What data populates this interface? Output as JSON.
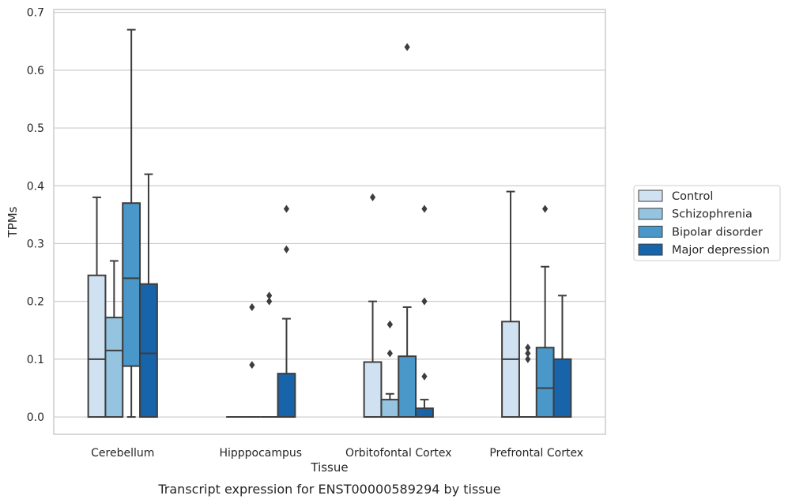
{
  "caption": "Transcript expression for ENST00000589294 by tissue",
  "chart_data": {
    "type": "box",
    "xlabel": "Tissue",
    "ylabel": "TPMs",
    "ylim": [
      -0.03,
      0.705
    ],
    "yticks": [
      "0.0",
      "0.1",
      "0.2",
      "0.3",
      "0.4",
      "0.5",
      "0.6",
      "0.7"
    ],
    "grid": "horizontal",
    "legend_position": "right",
    "categories": [
      "Cerebellum",
      "Hipppocampus",
      "Orbitofontal Cortex",
      "Prefrontal Cortex"
    ],
    "series": [
      {
        "name": "Control",
        "color": "#d0e1f2",
        "boxes": [
          {
            "whislo": 0.0,
            "q1": 0.0,
            "med": 0.1,
            "q3": 0.245,
            "whishi": 0.38,
            "fliers": []
          },
          {
            "whislo": 0.0,
            "q1": 0.0,
            "med": 0.0,
            "q3": 0.0,
            "whishi": 0.0,
            "fliers": []
          },
          {
            "whislo": 0.0,
            "q1": 0.0,
            "med": 0.0,
            "q3": 0.095,
            "whishi": 0.2,
            "fliers": [
              0.38
            ]
          },
          {
            "whislo": 0.0,
            "q1": 0.0,
            "med": 0.1,
            "q3": 0.165,
            "whishi": 0.39,
            "fliers": []
          }
        ]
      },
      {
        "name": "Schizophrenia",
        "color": "#94c4df",
        "boxes": [
          {
            "whislo": 0.0,
            "q1": 0.0,
            "med": 0.115,
            "q3": 0.172,
            "whishi": 0.27,
            "fliers": []
          },
          {
            "whislo": 0.0,
            "q1": 0.0,
            "med": 0.0,
            "q3": 0.0,
            "whishi": 0.0,
            "fliers": [
              0.09,
              0.19
            ]
          },
          {
            "whislo": 0.0,
            "q1": 0.0,
            "med": 0.0,
            "q3": 0.03,
            "whishi": 0.04,
            "fliers": [
              0.11,
              0.16,
              0.16
            ]
          },
          {
            "whislo": 0.0,
            "q1": 0.0,
            "med": 0.0,
            "q3": 0.0,
            "whishi": 0.0,
            "fliers": [
              0.1,
              0.11,
              0.12
            ]
          }
        ]
      },
      {
        "name": "Bipolar disorder",
        "color": "#4a98c9",
        "boxes": [
          {
            "whislo": 0.0,
            "q1": 0.088,
            "med": 0.24,
            "q3": 0.37,
            "whishi": 0.67,
            "fliers": []
          },
          {
            "whislo": 0.0,
            "q1": 0.0,
            "med": 0.0,
            "q3": 0.0,
            "whishi": 0.0,
            "fliers": [
              0.2,
              0.21
            ]
          },
          {
            "whislo": 0.0,
            "q1": 0.0,
            "med": 0.0,
            "q3": 0.105,
            "whishi": 0.19,
            "fliers": [
              0.64
            ]
          },
          {
            "whislo": 0.0,
            "q1": 0.0,
            "med": 0.05,
            "q3": 0.12,
            "whishi": 0.26,
            "fliers": [
              0.36
            ]
          }
        ]
      },
      {
        "name": "Major depression",
        "color": "#1764ab",
        "boxes": [
          {
            "whislo": 0.0,
            "q1": 0.0,
            "med": 0.11,
            "q3": 0.23,
            "whishi": 0.42,
            "fliers": []
          },
          {
            "whislo": 0.0,
            "q1": 0.0,
            "med": 0.0,
            "q3": 0.075,
            "whishi": 0.17,
            "fliers": [
              0.29,
              0.36
            ]
          },
          {
            "whislo": 0.0,
            "q1": 0.0,
            "med": 0.0,
            "q3": 0.015,
            "whishi": 0.03,
            "fliers": [
              0.07,
              0.2,
              0.36
            ]
          },
          {
            "whislo": 0.0,
            "q1": 0.0,
            "med": 0.0,
            "q3": 0.1,
            "whishi": 0.21,
            "fliers": []
          }
        ]
      }
    ]
  }
}
